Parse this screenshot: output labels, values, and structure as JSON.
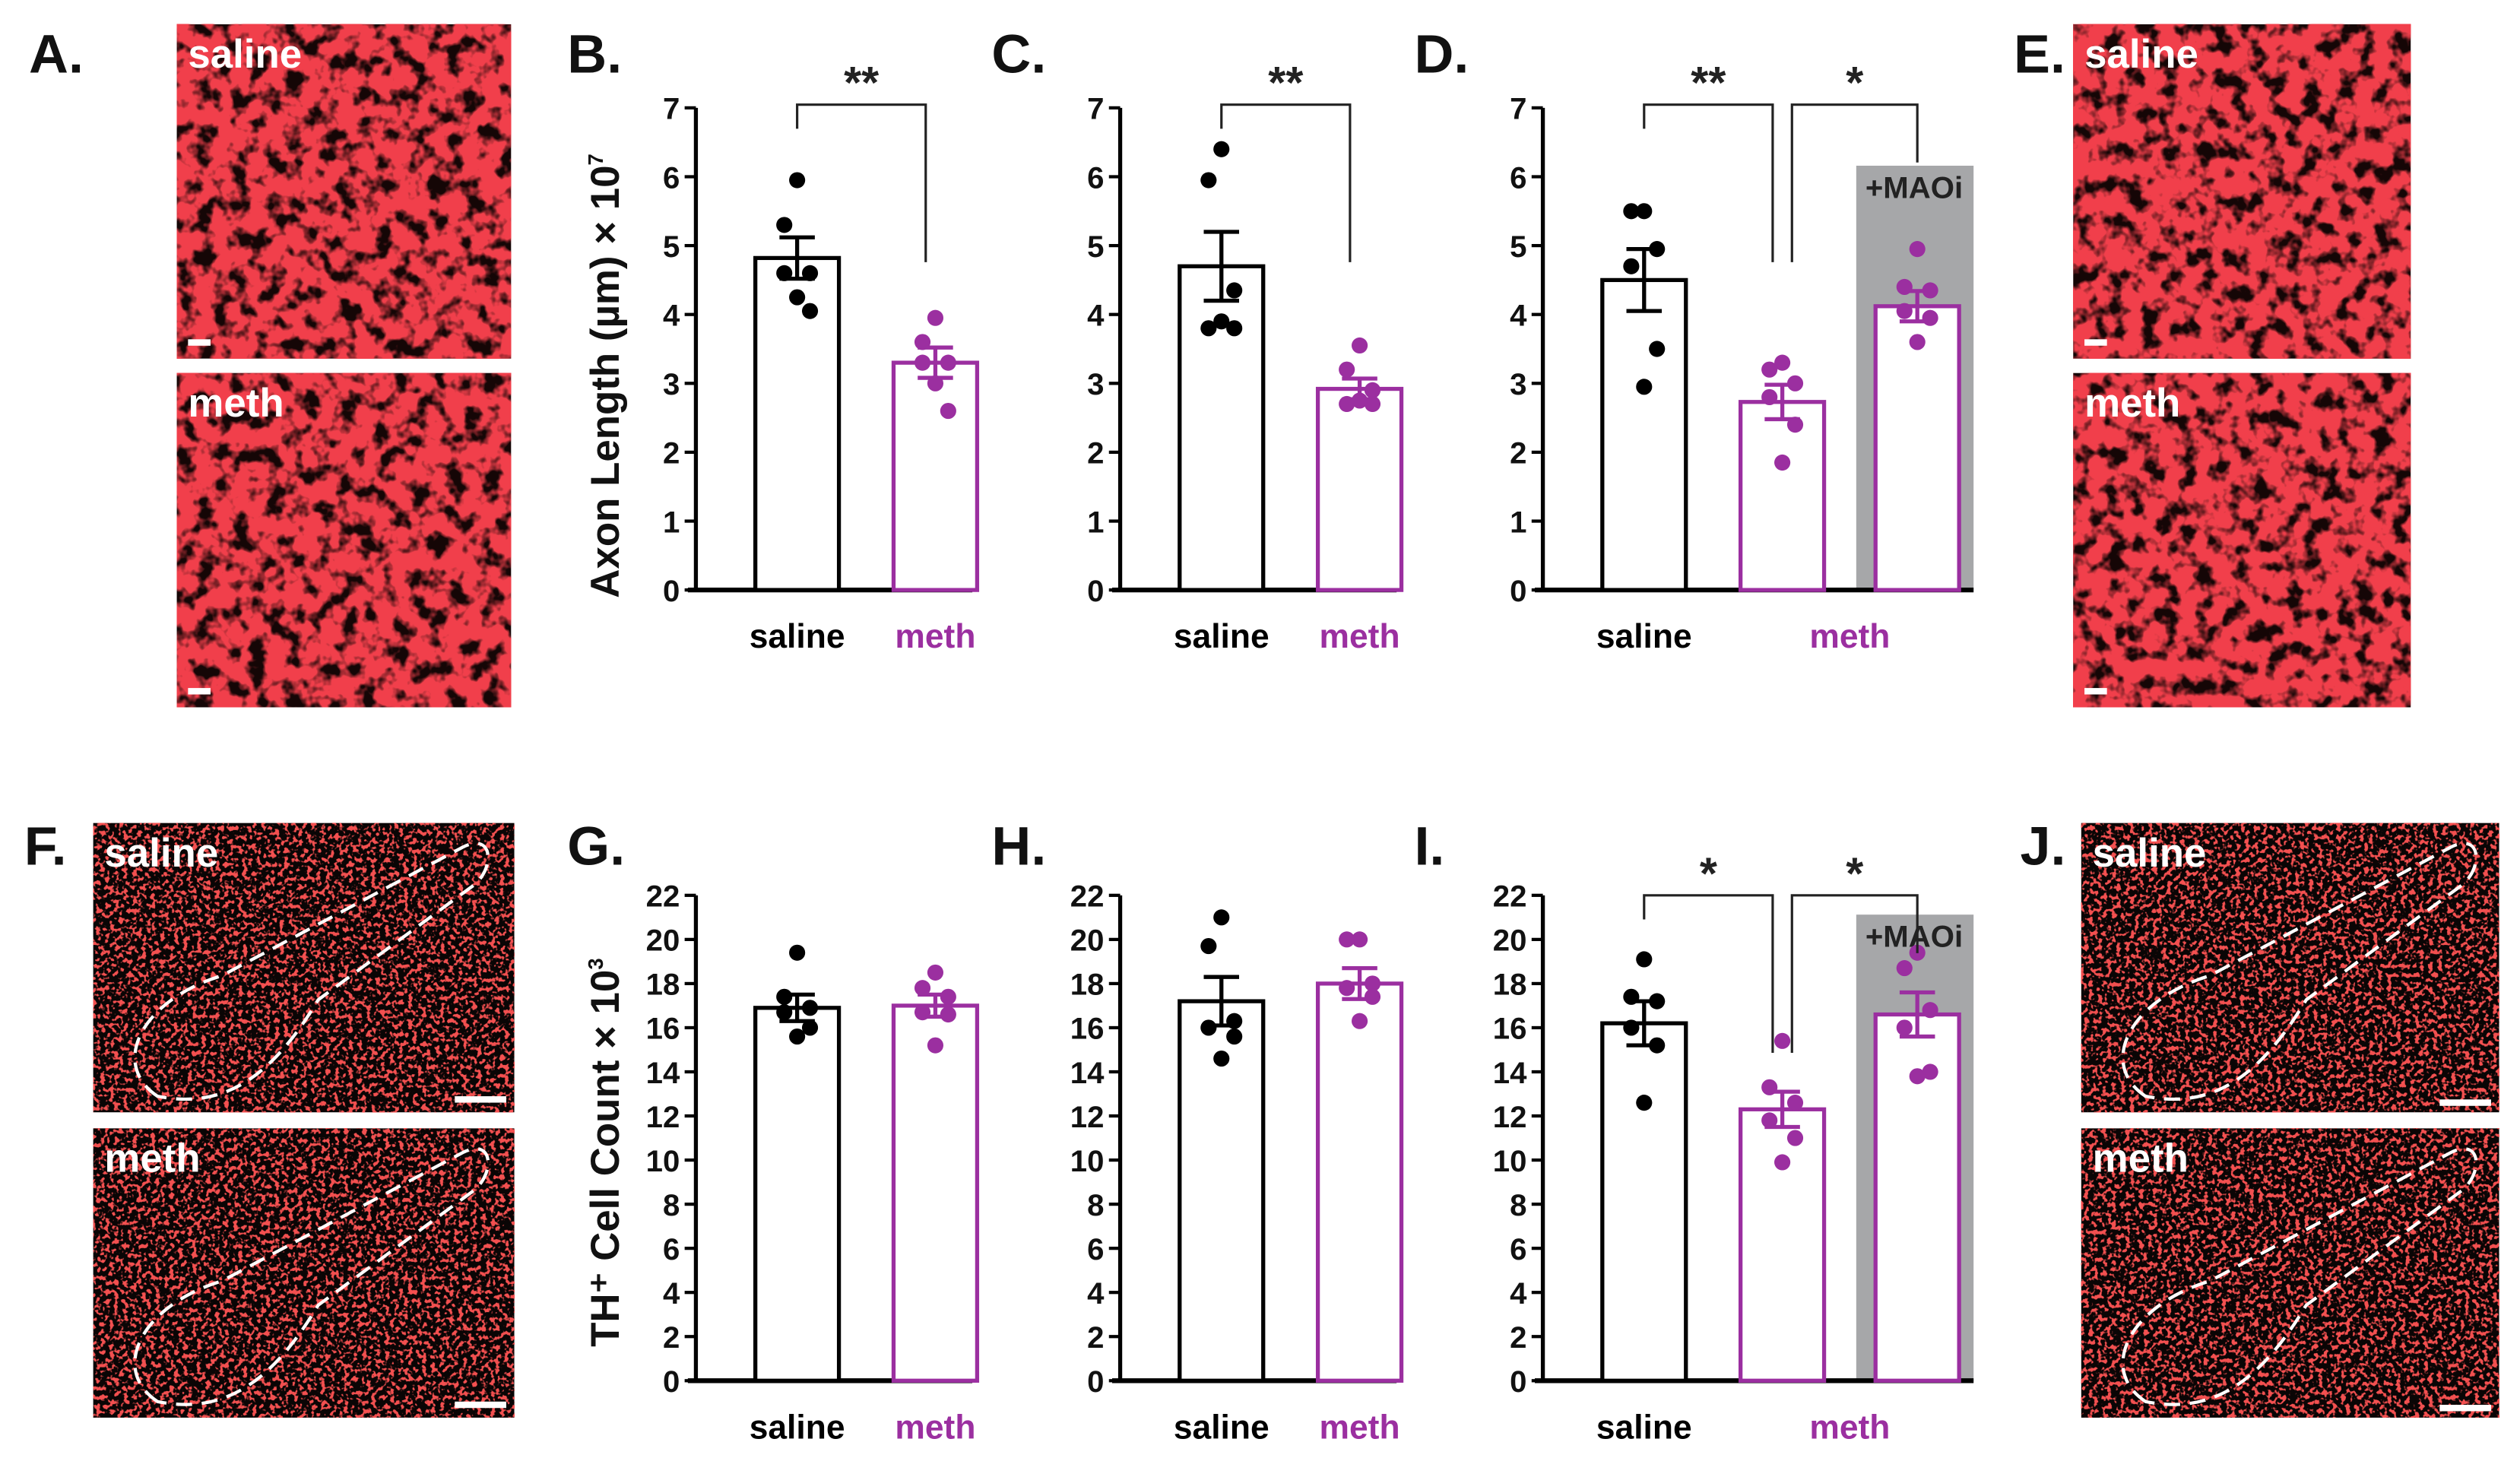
{
  "colors": {
    "saline": "#000000",
    "meth": "#9b2fa0",
    "maoi_bg": "#a6a7a9",
    "image_red": "#e0141b",
    "image_dark": "#150606"
  },
  "panels": {
    "A": {
      "label": "A.",
      "top": "saline",
      "bottom": "meth"
    },
    "E": {
      "label": "E.",
      "top": "saline",
      "bottom": "meth"
    },
    "F": {
      "label": "F.",
      "top": "saline",
      "bottom": "meth"
    },
    "J": {
      "label": "J.",
      "top": "saline",
      "bottom": "meth"
    }
  },
  "ylabels": {
    "axon": "Axon Length (µm) × 10",
    "axon_exp": "7",
    "th": "TH⁺ Cell Count × 10",
    "th_exp": "3"
  },
  "chart_data": [
    {
      "id": "B",
      "label": "B.",
      "type": "bar",
      "ylim": [
        0,
        7
      ],
      "yticks": [
        0,
        1,
        2,
        3,
        4,
        5,
        6,
        7
      ],
      "xlabels": [
        "saline",
        "meth"
      ],
      "groups": [
        {
          "name": "saline",
          "mean": 4.82,
          "sem": 0.3,
          "points": [
            5.95,
            5.3,
            4.6,
            4.6,
            4.05,
            4.25
          ]
        },
        {
          "name": "meth",
          "mean": 3.3,
          "sem": 0.22,
          "points": [
            3.95,
            3.6,
            3.3,
            3.3,
            2.6,
            3.0
          ]
        }
      ],
      "significance": [
        {
          "from": 0,
          "to": 1,
          "text": "**"
        }
      ]
    },
    {
      "id": "C",
      "label": "C.",
      "type": "bar",
      "ylim": [
        0,
        7
      ],
      "yticks": [
        0,
        1,
        2,
        3,
        4,
        5,
        6,
        7
      ],
      "xlabels": [
        "saline",
        "meth"
      ],
      "groups": [
        {
          "name": "saline",
          "mean": 4.7,
          "sem": 0.5,
          "points": [
            6.4,
            5.95,
            4.35,
            3.8,
            3.8,
            3.9
          ]
        },
        {
          "name": "meth",
          "mean": 2.92,
          "sem": 0.15,
          "points": [
            3.55,
            3.2,
            2.9,
            2.7,
            2.7,
            2.75
          ]
        }
      ],
      "significance": [
        {
          "from": 0,
          "to": 1,
          "text": "**"
        }
      ]
    },
    {
      "id": "D",
      "label": "D.",
      "type": "bar",
      "ylim": [
        0,
        7
      ],
      "yticks": [
        0,
        1,
        2,
        3,
        4,
        5,
        6,
        7
      ],
      "xlabels": [
        "saline",
        "meth"
      ],
      "maoi_label": "+MAOi",
      "groups": [
        {
          "name": "saline",
          "mean": 4.5,
          "sem": 0.45,
          "points": [
            5.5,
            5.5,
            4.95,
            4.7,
            3.5,
            2.95
          ]
        },
        {
          "name": "meth",
          "mean": 2.73,
          "sem": 0.25,
          "points": [
            3.3,
            3.2,
            3.0,
            2.8,
            2.4,
            1.85
          ]
        },
        {
          "name": "meth+MAOi",
          "mean": 4.12,
          "sem": 0.22,
          "points": [
            4.95,
            4.4,
            4.35,
            4.05,
            3.95,
            3.6
          ]
        }
      ],
      "significance": [
        {
          "from": 0,
          "to": 1,
          "text": "**"
        },
        {
          "from": 1,
          "to": 2,
          "text": "*"
        }
      ]
    },
    {
      "id": "G",
      "label": "G.",
      "type": "bar",
      "ylim": [
        0,
        22
      ],
      "yticks": [
        0,
        2,
        4,
        6,
        8,
        10,
        12,
        14,
        16,
        18,
        20,
        22
      ],
      "xlabels": [
        "saline",
        "meth"
      ],
      "groups": [
        {
          "name": "saline",
          "mean": 16.9,
          "sem": 0.6,
          "points": [
            19.4,
            17.4,
            16.9,
            16.7,
            16.0,
            15.6
          ]
        },
        {
          "name": "meth",
          "mean": 17.0,
          "sem": 0.5,
          "points": [
            18.5,
            17.8,
            17.4,
            16.7,
            16.6,
            15.2
          ]
        }
      ],
      "significance": []
    },
    {
      "id": "H",
      "label": "H.",
      "type": "bar",
      "ylim": [
        0,
        22
      ],
      "yticks": [
        0,
        2,
        4,
        6,
        8,
        10,
        12,
        14,
        16,
        18,
        20,
        22
      ],
      "xlabels": [
        "saline",
        "meth"
      ],
      "groups": [
        {
          "name": "saline",
          "mean": 17.2,
          "sem": 1.1,
          "points": [
            21.0,
            19.7,
            16.3,
            16.0,
            15.6,
            14.6
          ]
        },
        {
          "name": "meth",
          "mean": 18.0,
          "sem": 0.7,
          "points": [
            20.0,
            20.0,
            18.0,
            17.8,
            17.4,
            16.3
          ]
        }
      ],
      "significance": []
    },
    {
      "id": "I",
      "label": "I.",
      "type": "bar",
      "ylim": [
        0,
        22
      ],
      "yticks": [
        0,
        2,
        4,
        6,
        8,
        10,
        12,
        14,
        16,
        18,
        20,
        22
      ],
      "xlabels": [
        "saline",
        "meth"
      ],
      "maoi_label": "+MAOi",
      "groups": [
        {
          "name": "saline",
          "mean": 16.2,
          "sem": 1.0,
          "points": [
            19.1,
            17.4,
            17.2,
            16.0,
            15.2,
            12.6
          ]
        },
        {
          "name": "meth",
          "mean": 12.3,
          "sem": 0.8,
          "points": [
            15.4,
            13.3,
            12.6,
            11.8,
            11.0,
            9.9
          ]
        },
        {
          "name": "meth+MAOi",
          "mean": 16.6,
          "sem": 1.0,
          "points": [
            19.4,
            18.7,
            16.8,
            16.0,
            14.0,
            13.8
          ]
        }
      ],
      "significance": [
        {
          "from": 0,
          "to": 1,
          "text": "*"
        },
        {
          "from": 1,
          "to": 2,
          "text": "*"
        }
      ]
    }
  ]
}
